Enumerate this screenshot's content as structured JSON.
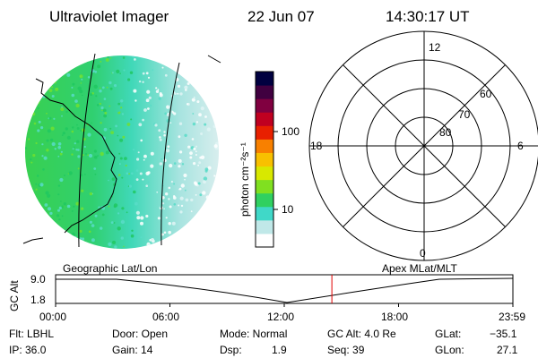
{
  "header": {
    "title": "Ultraviolet Imager",
    "date": "22 Jun 07",
    "time": "14:30:17 UT"
  },
  "colorbar": {
    "unit_label": "photon cm⁻²s⁻¹",
    "tick_100": "100",
    "tick_10": "10",
    "colors": [
      "#ffffff",
      "#c0e8e8",
      "#40d8c8",
      "#30d060",
      "#80e020",
      "#d8e800",
      "#f8c000",
      "#f88000",
      "#e82000",
      "#c00020",
      "#800040",
      "#400040",
      "#000040"
    ]
  },
  "polar": {
    "label_top": "12",
    "label_bottom": "0",
    "label_left": "18",
    "label_right": "6",
    "ring_60": "60",
    "ring_70": "70",
    "ring_80": "80"
  },
  "timeline": {
    "left_label": "Geographic Lat/Lon",
    "right_label": "Apex MLat/MLT",
    "axis_label": "GC Alt",
    "y_top": "9.0",
    "y_bottom": "1.8",
    "ticks": [
      "00:00",
      "06:00",
      "12:00",
      "18:00",
      "23:59"
    ],
    "marker_hour": 14.5,
    "marker_color": "#e00000"
  },
  "info": {
    "flt": "Flt: LBHL",
    "ip": "IP: 36.0",
    "door": "Door: Open",
    "gain": "Gain: 14",
    "mode": "Mode: Normal",
    "dsp_label": "Dsp:",
    "dsp_value": "1.9",
    "gc_alt": "GC Alt: 4.0 Re",
    "seq": "Seq: 39",
    "glat_label": "GLat:",
    "glat_value": "−35.1",
    "glon_label": "GLon:",
    "glon_value": "27.1"
  }
}
